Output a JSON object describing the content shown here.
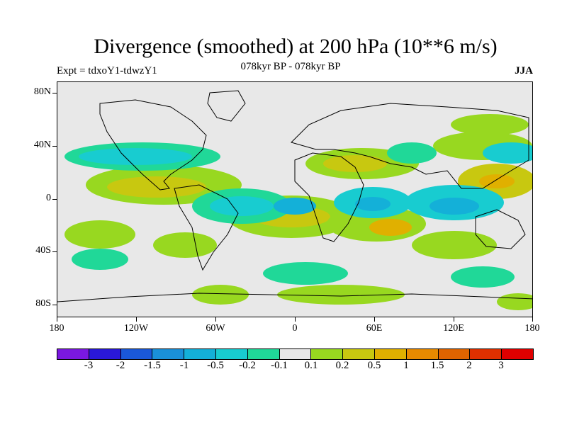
{
  "title": "Divergence (smoothed) at 200 hPa (10**6 m/s)",
  "left_label": "Expt = tdxoY1-tdwzY1",
  "center_label": "078kyr BP - 078kyr BP",
  "right_label": "JJA",
  "y_axis_labels": [
    "80N",
    "40N",
    "0",
    "40S",
    "80S"
  ],
  "x_axis_labels": [
    "180",
    "120W",
    "60W",
    "0",
    "60E",
    "120E",
    "180"
  ],
  "colorbar": {
    "labels": [
      "-3",
      "-2",
      "-1.5",
      "-1",
      "-0.5",
      "-0.2",
      "-0.1",
      "0.1",
      "0.2",
      "0.5",
      "1",
      "1.5",
      "2",
      "3"
    ],
    "colors": [
      "#7a18e0",
      "#2a18d8",
      "#1a58d8",
      "#1a90d8",
      "#14b0d8",
      "#18ccd0",
      "#20d898",
      "#e8e8e8",
      "#98d820",
      "#c8c810",
      "#e0b000",
      "#e88a00",
      "#e06400",
      "#e03000",
      "#e00000"
    ]
  },
  "colors": {
    "background_field": "#e8e8e8",
    "coastline": "#000000"
  }
}
